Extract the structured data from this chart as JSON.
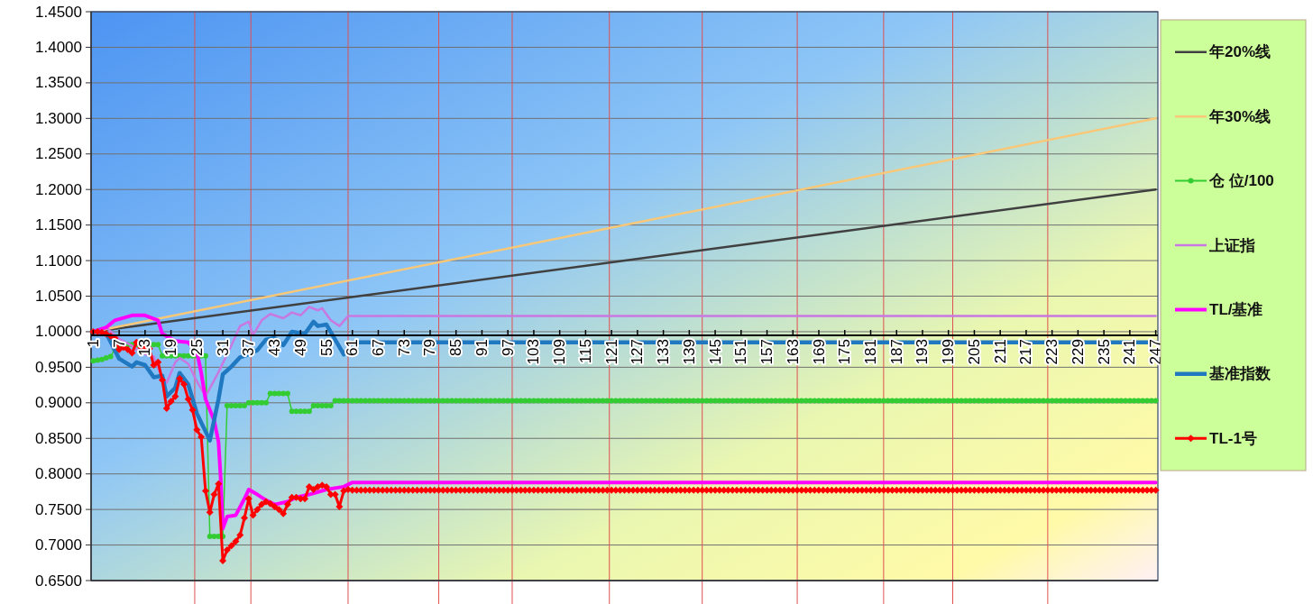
{
  "chart_data": {
    "type": "line",
    "xlim": [
      0.5,
      247.5
    ],
    "xticks": [
      1,
      7,
      13,
      19,
      25,
      31,
      37,
      43,
      49,
      55,
      61,
      67,
      73,
      79,
      85,
      91,
      97,
      103,
      109,
      115,
      121,
      127,
      133,
      139,
      145,
      151,
      157,
      163,
      169,
      175,
      181,
      187,
      193,
      199,
      205,
      211,
      217,
      223,
      229,
      235,
      241,
      247
    ],
    "ylim": [
      0.65,
      1.45
    ],
    "yticks": [
      {
        "value": 0.65,
        "label": "0.6500"
      },
      {
        "value": 0.7,
        "label": "0.7000"
      },
      {
        "value": 0.75,
        "label": "0.7500"
      },
      {
        "value": 0.8,
        "label": "0.8000"
      },
      {
        "value": 0.85,
        "label": "0.8500"
      },
      {
        "value": 0.9,
        "label": "0.9000"
      },
      {
        "value": 0.95,
        "label": "0.9500"
      },
      {
        "value": 1.0,
        "label": "1.0000"
      },
      {
        "value": 1.05,
        "label": "1.0500"
      },
      {
        "value": 1.1,
        "label": "1.1000"
      },
      {
        "value": 1.15,
        "label": "1.1500"
      },
      {
        "value": 1.2,
        "label": "1.2000"
      },
      {
        "value": 1.25,
        "label": "1.2500"
      },
      {
        "value": 1.3,
        "label": "1.3000"
      },
      {
        "value": 1.35,
        "label": "1.3500"
      },
      {
        "value": 1.4,
        "label": "1.4000"
      },
      {
        "value": 1.45,
        "label": "1.4500"
      }
    ],
    "grid": "y",
    "legend": "right",
    "ref_lines": [
      {
        "axis": "x",
        "value": 24.5,
        "color": "#e05050"
      },
      {
        "axis": "x",
        "value": 37.5,
        "color": "#e05050"
      },
      {
        "axis": "x",
        "value": 60,
        "color": "#e05050"
      },
      {
        "axis": "x",
        "value": 81,
        "color": "#e05050"
      },
      {
        "axis": "x",
        "value": 98,
        "color": "#e05050"
      },
      {
        "axis": "x",
        "value": 120.5,
        "color": "#e05050"
      },
      {
        "axis": "x",
        "value": 142,
        "color": "#e05050"
      },
      {
        "axis": "x",
        "value": 164,
        "color": "#e05050"
      },
      {
        "axis": "x",
        "value": 184,
        "color": "#e05050"
      },
      {
        "axis": "x",
        "value": 200,
        "color": "#e05050"
      },
      {
        "axis": "x",
        "value": 222,
        "color": "#e05050"
      }
    ],
    "series": [
      {
        "name": "年20%线",
        "type": "line",
        "color": "#404040",
        "x": [
          1,
          247
        ],
        "values": [
          1.0,
          1.2
        ]
      },
      {
        "name": "年30%线",
        "type": "line",
        "color": "#f8c878",
        "x": [
          1,
          247
        ],
        "values": [
          1.0,
          1.3
        ]
      },
      {
        "name": "仓 位/100",
        "type": "line",
        "color": "#33cc33",
        "marker": "circle",
        "x": [
          1,
          2,
          3,
          4,
          5,
          6,
          7,
          8,
          9,
          10,
          11,
          12,
          13,
          14,
          15,
          16,
          17,
          18,
          19,
          20,
          21,
          22,
          23,
          24,
          25,
          26,
          27,
          28,
          29,
          30,
          31,
          32,
          33,
          34,
          35,
          36,
          37,
          38,
          39,
          40,
          41,
          42,
          43,
          44,
          45,
          46,
          47,
          48,
          49,
          50,
          51,
          52,
          53,
          54,
          55,
          56,
          57,
          58,
          59,
          60,
          61,
          62,
          63,
          64,
          65,
          66,
          67,
          68,
          69,
          70,
          71,
          72,
          73,
          74,
          75,
          76,
          77,
          78,
          79,
          80,
          81,
          82,
          83,
          84,
          85,
          86,
          87,
          88,
          89,
          90,
          91,
          92,
          93,
          94,
          95,
          96,
          97,
          98,
          99,
          100,
          101,
          102,
          103,
          104,
          105,
          106,
          107,
          108,
          109,
          110,
          111,
          112,
          113,
          114,
          115,
          116,
          117,
          118,
          119,
          120,
          121,
          122,
          123,
          124,
          125,
          126,
          127,
          128,
          129,
          130,
          131,
          132,
          133,
          134,
          135,
          136,
          137,
          138,
          139,
          140,
          141,
          142,
          143,
          144,
          145,
          146,
          147,
          148,
          149,
          150,
          151,
          152,
          153,
          154,
          155,
          156,
          157,
          158,
          159,
          160,
          161,
          162,
          163,
          164,
          165,
          166,
          167,
          168,
          169,
          170,
          171,
          172,
          173,
          174,
          175,
          176,
          177,
          178,
          179,
          180,
          181,
          182,
          183,
          184,
          185,
          186,
          187,
          188,
          189,
          190,
          191,
          192,
          193,
          194,
          195,
          196,
          197,
          198,
          199,
          200,
          201,
          202,
          203,
          204,
          205,
          206,
          207,
          208,
          209,
          210,
          211,
          212,
          213,
          214,
          215,
          216,
          217,
          218,
          219,
          220,
          221,
          222,
          223,
          224,
          225,
          226,
          227,
          228,
          229,
          230,
          231,
          232,
          233,
          234,
          235,
          236,
          237,
          238,
          239,
          240,
          241,
          242,
          243,
          244,
          245,
          246,
          247
        ],
        "values": [
          0.959,
          0.96,
          0.961,
          0.963,
          0.965,
          0.975,
          0.98,
          0.982,
          0.982,
          0.982,
          0.982,
          0.982,
          0.982,
          0.982,
          0.982,
          0.982,
          0.966,
          0.966,
          0.966,
          0.966,
          0.966,
          0.966,
          0.966,
          0.966,
          0.966,
          0.966,
          0.966,
          0.712,
          0.712,
          0.712,
          0.712,
          0.896,
          0.896,
          0.896,
          0.896,
          0.896,
          0.9,
          0.9,
          0.9,
          0.9,
          0.9,
          0.913,
          0.913,
          0.913,
          0.913,
          0.913,
          0.888,
          0.888,
          0.888,
          0.888,
          0.888,
          0.896,
          0.896,
          0.896,
          0.896,
          0.896,
          0.903,
          0.903,
          0.903,
          0.903,
          0.903,
          0.903,
          0.903,
          0.903,
          0.903,
          0.903,
          0.903,
          0.903,
          0.903,
          0.903,
          0.903,
          0.903,
          0.903,
          0.903,
          0.903,
          0.903,
          0.903,
          0.903,
          0.903,
          0.903,
          0.903,
          0.903,
          0.903,
          0.903,
          0.903,
          0.903,
          0.903,
          0.903,
          0.903,
          0.903,
          0.903,
          0.903,
          0.903,
          0.903,
          0.903,
          0.903,
          0.903,
          0.903,
          0.903,
          0.903,
          0.903,
          0.903,
          0.903,
          0.903,
          0.903,
          0.903,
          0.903,
          0.903,
          0.903,
          0.903,
          0.903,
          0.903,
          0.903,
          0.903,
          0.903,
          0.903,
          0.903,
          0.903,
          0.903,
          0.903,
          0.903,
          0.903,
          0.903,
          0.903,
          0.903,
          0.903,
          0.903,
          0.903,
          0.903,
          0.903,
          0.903,
          0.903,
          0.903,
          0.903,
          0.903,
          0.903,
          0.903,
          0.903,
          0.903,
          0.903,
          0.903,
          0.903,
          0.903,
          0.903,
          0.903,
          0.903,
          0.903,
          0.903,
          0.903,
          0.903,
          0.903,
          0.903,
          0.903,
          0.903,
          0.903,
          0.903,
          0.903,
          0.903,
          0.903,
          0.903,
          0.903,
          0.903,
          0.903,
          0.903,
          0.903,
          0.903,
          0.903,
          0.903,
          0.903,
          0.903,
          0.903,
          0.903,
          0.903,
          0.903,
          0.903,
          0.903,
          0.903,
          0.903,
          0.903,
          0.903,
          0.903,
          0.903,
          0.903,
          0.903,
          0.903,
          0.903,
          0.903,
          0.903,
          0.903,
          0.903,
          0.903,
          0.903,
          0.903,
          0.903,
          0.903,
          0.903,
          0.903,
          0.903,
          0.903,
          0.903,
          0.903,
          0.903,
          0.903,
          0.903,
          0.903,
          0.903,
          0.903,
          0.903,
          0.903,
          0.903,
          0.903,
          0.903,
          0.903,
          0.903,
          0.903,
          0.903,
          0.903,
          0.903,
          0.903,
          0.903,
          0.903,
          0.903,
          0.903,
          0.903,
          0.903,
          0.903,
          0.903,
          0.903,
          0.903,
          0.903,
          0.903,
          0.903,
          0.903,
          0.903,
          0.903,
          0.903,
          0.903,
          0.903,
          0.903,
          0.903,
          0.903,
          0.903,
          0.903,
          0.903,
          0.903,
          0.903,
          0.903
        ]
      },
      {
        "name": "上证指",
        "type": "line",
        "color": "#c878e0",
        "x": [
          1,
          4,
          7,
          10,
          12,
          15,
          17,
          18,
          20,
          21,
          23,
          25,
          27,
          30,
          33,
          35,
          37,
          38,
          40,
          42,
          45,
          47,
          49,
          51,
          53,
          54,
          56,
          58,
          60,
          247
        ],
        "values": [
          1.0,
          1.006,
          0.99,
          0.98,
          0.97,
          0.965,
          0.934,
          0.928,
          0.957,
          0.963,
          0.955,
          0.93,
          0.909,
          0.943,
          0.981,
          1.008,
          1.014,
          0.995,
          1.016,
          1.025,
          1.019,
          1.027,
          1.023,
          1.035,
          1.03,
          1.033,
          1.016,
          1.008,
          1.022,
          1.022
        ]
      },
      {
        "name": "TL/基准",
        "type": "line",
        "color": "#ff00ff",
        "x": [
          1,
          4,
          6,
          10,
          13,
          16,
          17,
          20,
          23,
          25,
          26,
          27,
          29,
          30,
          30.5,
          31,
          32,
          34,
          36,
          37,
          39,
          41,
          43,
          46,
          48,
          51,
          55,
          59,
          61,
          247
        ],
        "values": [
          1.0,
          1.006,
          1.016,
          1.023,
          1.023,
          1.016,
          0.997,
          0.987,
          0.985,
          0.972,
          0.942,
          0.905,
          0.875,
          0.845,
          0.795,
          0.723,
          0.74,
          0.742,
          0.765,
          0.778,
          0.771,
          0.763,
          0.757,
          0.761,
          0.767,
          0.771,
          0.778,
          0.782,
          0.788,
          0.788
        ]
      },
      {
        "name": "基准指数",
        "type": "line",
        "color": "#1f78c0",
        "x": [
          1,
          4,
          7,
          10,
          11,
          13,
          15,
          17,
          18,
          20,
          21,
          23,
          25,
          28,
          30,
          31,
          33,
          35,
          37,
          39,
          41,
          43,
          45,
          47,
          50,
          52,
          53,
          55,
          57,
          59,
          61,
          247
        ],
        "values": [
          1.0,
          0.998,
          0.962,
          0.951,
          0.957,
          0.953,
          0.936,
          0.938,
          0.909,
          0.921,
          0.942,
          0.926,
          0.885,
          0.847,
          0.905,
          0.94,
          0.951,
          0.964,
          0.968,
          0.974,
          0.989,
          0.991,
          0.981,
          1.0,
          0.997,
          1.014,
          1.008,
          1.01,
          0.989,
          0.968,
          0.985,
          0.985
        ]
      },
      {
        "name": "TL-1号",
        "type": "line",
        "color": "#ff0000",
        "marker": "diamond",
        "x": [
          1,
          2,
          3,
          4,
          5,
          6,
          7,
          8,
          9,
          10,
          11,
          12,
          13,
          14,
          15,
          16,
          17,
          18,
          19,
          20,
          21,
          22,
          23,
          24,
          25,
          26,
          27,
          28,
          29,
          30,
          31,
          32,
          33,
          34,
          35,
          36,
          37,
          38,
          39,
          40,
          41,
          42,
          43,
          44,
          45,
          46,
          47,
          48,
          49,
          50,
          51,
          52,
          53,
          54,
          55,
          56,
          57,
          58,
          59,
          60,
          61,
          62,
          63,
          64,
          65,
          66,
          67,
          68,
          69,
          70,
          71,
          72,
          73,
          74,
          75,
          76,
          77,
          78,
          79,
          80,
          81,
          82,
          83,
          84,
          85,
          86,
          87,
          88,
          89,
          90,
          91,
          92,
          93,
          94,
          95,
          96,
          97,
          98,
          99,
          100,
          101,
          102,
          103,
          104,
          105,
          106,
          107,
          108,
          109,
          110,
          111,
          112,
          113,
          114,
          115,
          116,
          117,
          118,
          119,
          120,
          121,
          122,
          123,
          124,
          125,
          126,
          127,
          128,
          129,
          130,
          131,
          132,
          133,
          134,
          135,
          136,
          137,
          138,
          139,
          140,
          141,
          142,
          143,
          144,
          145,
          146,
          147,
          148,
          149,
          150,
          151,
          152,
          153,
          154,
          155,
          156,
          157,
          158,
          159,
          160,
          161,
          162,
          163,
          164,
          165,
          166,
          167,
          168,
          169,
          170,
          171,
          172,
          173,
          174,
          175,
          176,
          177,
          178,
          179,
          180,
          181,
          182,
          183,
          184,
          185,
          186,
          187,
          188,
          189,
          190,
          191,
          192,
          193,
          194,
          195,
          196,
          197,
          198,
          199,
          200,
          201,
          202,
          203,
          204,
          205,
          206,
          207,
          208,
          209,
          210,
          211,
          212,
          213,
          214,
          215,
          216,
          217,
          218,
          219,
          220,
          221,
          222,
          223,
          224,
          225,
          226,
          227,
          228,
          229,
          230,
          231,
          232,
          233,
          234,
          235,
          236,
          237,
          238,
          239,
          240,
          241,
          242,
          243,
          244,
          245,
          246,
          247
        ],
        "values": [
          1.0,
          1.0,
          0.999,
          0.997,
          0.994,
          0.991,
          0.975,
          0.978,
          0.975,
          0.97,
          0.985,
          0.978,
          0.978,
          0.976,
          0.953,
          0.957,
          0.932,
          0.892,
          0.902,
          0.909,
          0.934,
          0.926,
          0.905,
          0.89,
          0.862,
          0.852,
          0.776,
          0.746,
          0.771,
          0.786,
          0.678,
          0.693,
          0.699,
          0.705,
          0.714,
          0.738,
          0.765,
          0.742,
          0.75,
          0.757,
          0.761,
          0.758,
          0.754,
          0.75,
          0.744,
          0.757,
          0.767,
          0.767,
          0.765,
          0.765,
          0.782,
          0.778,
          0.782,
          0.784,
          0.782,
          0.771,
          0.771,
          0.754,
          0.776,
          0.778,
          0.777,
          0.777,
          0.777,
          0.777,
          0.777,
          0.777,
          0.777,
          0.777,
          0.777,
          0.777,
          0.777,
          0.777,
          0.777,
          0.777,
          0.777,
          0.777,
          0.777,
          0.777,
          0.777,
          0.777,
          0.777,
          0.777,
          0.777,
          0.777,
          0.777,
          0.777,
          0.777,
          0.777,
          0.777,
          0.777,
          0.777,
          0.777,
          0.777,
          0.777,
          0.777,
          0.777,
          0.777,
          0.777,
          0.777,
          0.777,
          0.777,
          0.777,
          0.777,
          0.777,
          0.777,
          0.777,
          0.777,
          0.777,
          0.777,
          0.777,
          0.777,
          0.777,
          0.777,
          0.777,
          0.777,
          0.777,
          0.777,
          0.777,
          0.777,
          0.777,
          0.777,
          0.777,
          0.777,
          0.777,
          0.777,
          0.777,
          0.777,
          0.777,
          0.777,
          0.777,
          0.777,
          0.777,
          0.777,
          0.777,
          0.777,
          0.777,
          0.777,
          0.777,
          0.777,
          0.777,
          0.777,
          0.777,
          0.777,
          0.777,
          0.777,
          0.777,
          0.777,
          0.777,
          0.777,
          0.777,
          0.777,
          0.777,
          0.777,
          0.777,
          0.777,
          0.777,
          0.777,
          0.777,
          0.777,
          0.777,
          0.777,
          0.777,
          0.777,
          0.777,
          0.777,
          0.777,
          0.777,
          0.777,
          0.777,
          0.777,
          0.777,
          0.777,
          0.777,
          0.777,
          0.777,
          0.777,
          0.777,
          0.777,
          0.777,
          0.777,
          0.777,
          0.777,
          0.777,
          0.777,
          0.777,
          0.777,
          0.777,
          0.777,
          0.777,
          0.777,
          0.777,
          0.777,
          0.777,
          0.777,
          0.777,
          0.777,
          0.777,
          0.777,
          0.777,
          0.777,
          0.777,
          0.777,
          0.777,
          0.777,
          0.777,
          0.777,
          0.777,
          0.777,
          0.777,
          0.777,
          0.777,
          0.777,
          0.777,
          0.777,
          0.777,
          0.777,
          0.777,
          0.777,
          0.777,
          0.777,
          0.777,
          0.777,
          0.777,
          0.777,
          0.777,
          0.777,
          0.777,
          0.777,
          0.777,
          0.777,
          0.777,
          0.777,
          0.777,
          0.777,
          0.777,
          0.777,
          0.777,
          0.777,
          0.777,
          0.777,
          0.777,
          0.777,
          0.777,
          0.777,
          0.777,
          0.777,
          0.777
        ]
      }
    ]
  }
}
